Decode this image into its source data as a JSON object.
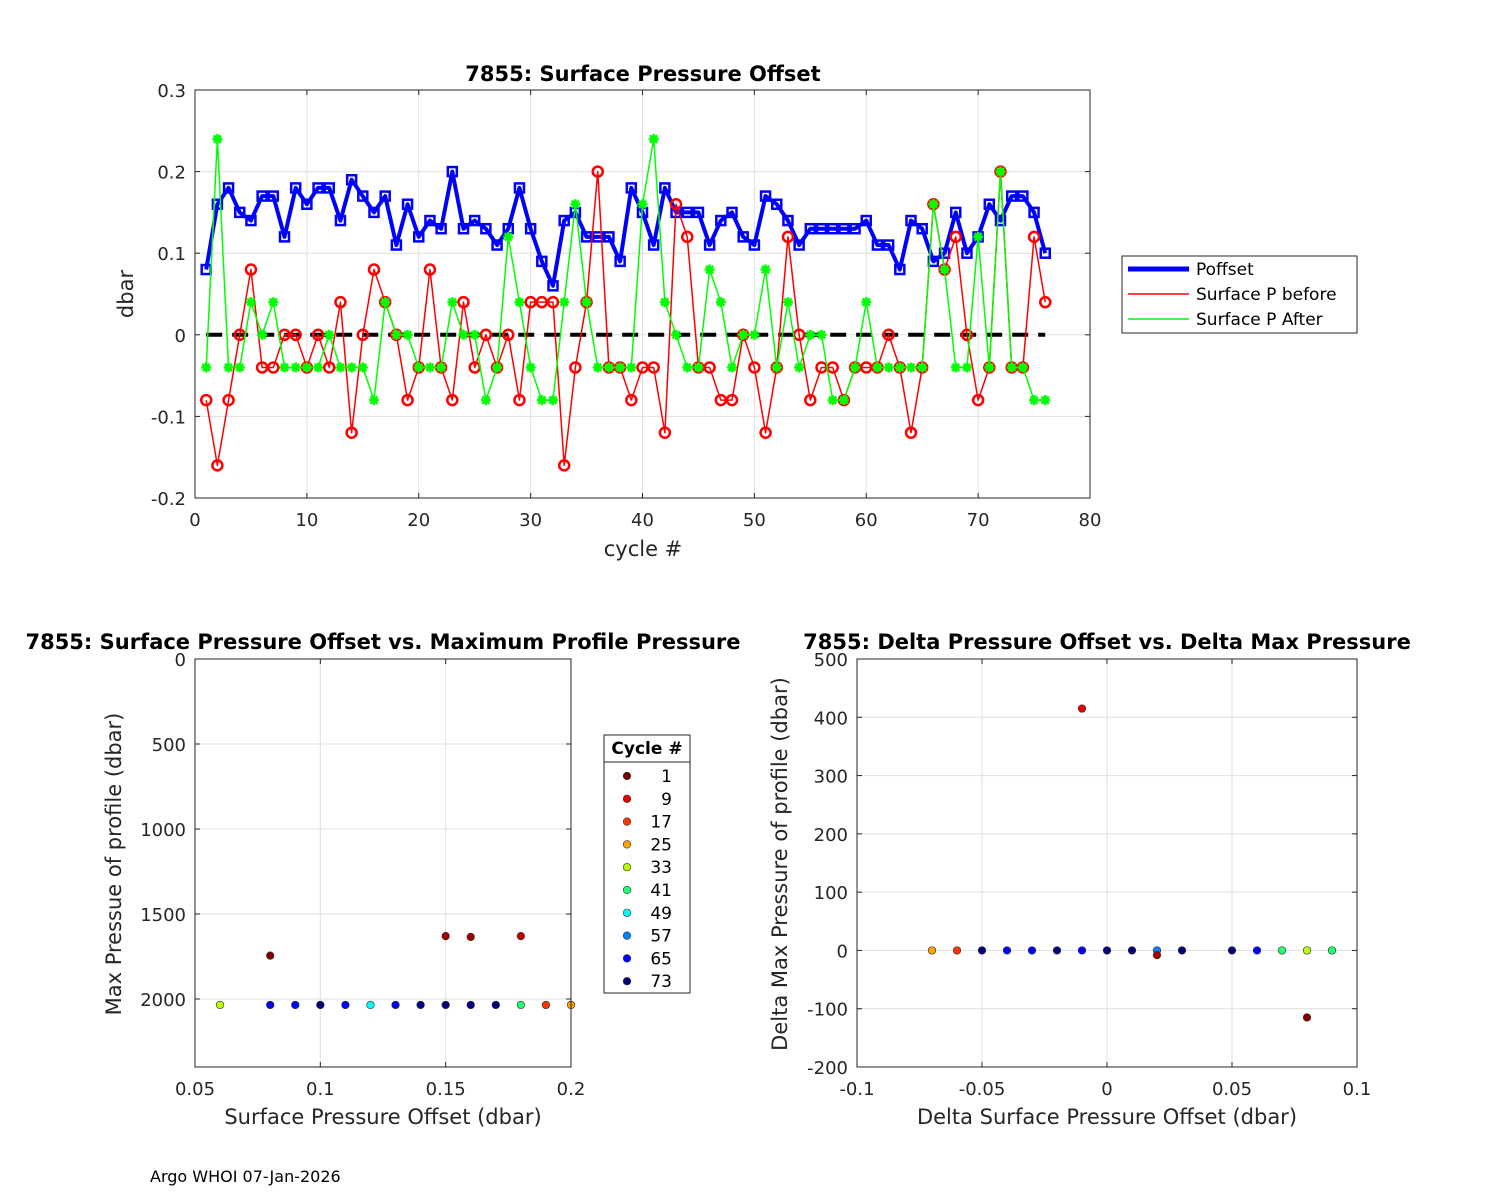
{
  "footer": "Argo WHOI 07-Jan-2026",
  "chart_data": [
    {
      "type": "line",
      "title": "7855: Surface Pressure Offset",
      "xlabel": "cycle #",
      "ylabel": "dbar",
      "xlim": [
        0,
        80
      ],
      "ylim": [
        -0.2,
        0.3
      ],
      "xticks": [
        0,
        10,
        20,
        30,
        40,
        50,
        60,
        70,
        80
      ],
      "yticks": [
        -0.2,
        -0.1,
        0,
        0.1,
        0.2,
        0.3
      ],
      "xtick_labels": [
        "0",
        "10",
        "20",
        "30",
        "40",
        "50",
        "60",
        "70",
        "80"
      ],
      "ytick_labels": [
        "-0.2",
        "-0.1",
        "0",
        "0.1",
        "0.2",
        "0.3"
      ],
      "grid": true,
      "legend_position": "outside-right",
      "zero_line": {
        "y": 0,
        "color": "#000000",
        "style": "dashed"
      },
      "x": [
        1,
        2,
        3,
        4,
        5,
        6,
        7,
        8,
        9,
        10,
        11,
        12,
        13,
        14,
        15,
        16,
        17,
        18,
        19,
        20,
        21,
        22,
        23,
        24,
        25,
        26,
        27,
        28,
        29,
        30,
        31,
        32,
        33,
        34,
        35,
        36,
        37,
        38,
        39,
        40,
        41,
        42,
        43,
        44,
        45,
        46,
        47,
        48,
        49,
        50,
        51,
        52,
        53,
        54,
        55,
        56,
        57,
        58,
        59,
        60,
        61,
        62,
        63,
        64,
        65,
        66,
        67,
        68,
        69,
        70,
        71,
        72,
        73,
        74,
        75,
        76
      ],
      "series": [
        {
          "name": "Poffset",
          "color": "#0000ff",
          "marker": "square",
          "values": [
            0.08,
            0.16,
            0.18,
            0.15,
            0.14,
            0.17,
            0.17,
            0.12,
            0.18,
            0.16,
            0.18,
            0.18,
            0.14,
            0.19,
            0.17,
            0.15,
            0.17,
            0.11,
            0.16,
            0.12,
            0.14,
            0.13,
            0.2,
            0.13,
            0.14,
            0.13,
            0.11,
            0.13,
            0.18,
            0.13,
            0.09,
            0.06,
            0.14,
            0.15,
            0.12,
            0.12,
            0.12,
            0.09,
            0.18,
            0.15,
            0.11,
            0.18,
            0.15,
            0.15,
            0.15,
            0.11,
            0.14,
            0.15,
            0.12,
            0.11,
            0.17,
            0.16,
            0.14,
            0.11,
            0.13,
            0.13,
            0.13,
            0.13,
            0.13,
            0.14,
            0.11,
            0.11,
            0.08,
            0.14,
            0.13,
            0.09,
            0.1,
            0.15,
            0.1,
            0.12,
            0.16,
            0.14,
            0.17,
            0.17,
            0.15,
            0.1
          ]
        },
        {
          "name": "Surface P before",
          "color": "#ff0000",
          "marker": "circle",
          "values": [
            -0.08,
            -0.16,
            -0.08,
            0,
            0.08,
            -0.04,
            -0.04,
            0,
            0,
            -0.04,
            0,
            -0.04,
            0.04,
            -0.12,
            0,
            0.08,
            0.04,
            0,
            -0.08,
            -0.04,
            0.08,
            -0.04,
            -0.08,
            0.04,
            -0.04,
            0,
            -0.04,
            0,
            -0.08,
            0.04,
            0.04,
            0.04,
            -0.16,
            -0.04,
            0.04,
            0.2,
            -0.04,
            -0.04,
            -0.08,
            -0.04,
            -0.04,
            -0.12,
            0.16,
            0.12,
            -0.04,
            -0.04,
            -0.08,
            -0.08,
            0,
            -0.04,
            -0.12,
            -0.04,
            0.12,
            0,
            -0.08,
            -0.04,
            -0.04,
            -0.08,
            -0.04,
            -0.04,
            -0.04,
            0,
            -0.04,
            -0.12,
            -0.04,
            0.16,
            0.08,
            0.12,
            0,
            -0.08,
            -0.04,
            0.2,
            -0.04,
            -0.04,
            0.12,
            0.04
          ]
        },
        {
          "name": "Surface P After",
          "color": "#00ff00",
          "marker": "asterisk",
          "values": [
            -0.04,
            0.24,
            -0.04,
            -0.04,
            0.04,
            0,
            0.04,
            -0.04,
            -0.04,
            -0.04,
            -0.04,
            0,
            -0.04,
            -0.04,
            -0.04,
            -0.08,
            0.04,
            0,
            0,
            -0.04,
            -0.04,
            -0.04,
            0.04,
            0,
            0,
            -0.08,
            -0.04,
            0.12,
            0.04,
            -0.04,
            -0.08,
            -0.08,
            0.04,
            0.16,
            0.04,
            -0.04,
            -0.04,
            -0.04,
            -0.04,
            0.16,
            0.24,
            0.04,
            0,
            -0.04,
            -0.04,
            0.08,
            0.04,
            -0.04,
            0,
            0,
            0.08,
            -0.04,
            0.04,
            -0.04,
            0,
            0,
            -0.08,
            -0.08,
            -0.04,
            0.04,
            -0.04,
            -0.04,
            -0.04,
            -0.04,
            -0.04,
            0.16,
            0.08,
            -0.04,
            -0.04,
            0.12,
            -0.04,
            0.2,
            -0.04,
            -0.04,
            -0.08,
            -0.08
          ]
        }
      ]
    },
    {
      "type": "scatter",
      "title": "7855: Surface Pressure Offset vs. Maximum Profile Pressure",
      "xlabel": "Surface Pressure Offset (dbar)",
      "ylabel": "Max Pressue of profile (dbar)",
      "xlim": [
        0.05,
        0.2
      ],
      "ylim": [
        0,
        2400
      ],
      "y_reversed": true,
      "xticks": [
        0.05,
        0.1,
        0.15,
        0.2
      ],
      "yticks": [
        0,
        500,
        1000,
        1500,
        2000
      ],
      "xtick_labels": [
        "0.05",
        "0.1",
        "0.15",
        "0.2"
      ],
      "ytick_labels": [
        "0",
        "500",
        "1000",
        "1500",
        "2000"
      ],
      "grid": true,
      "legend_title": "Cycle #",
      "legend_position": "outside-right",
      "legend": [
        {
          "label": "1",
          "color": "#800000"
        },
        {
          "label": "9",
          "color": "#e60000"
        },
        {
          "label": "17",
          "color": "#ff3300"
        },
        {
          "label": "25",
          "color": "#ffa000"
        },
        {
          "label": "33",
          "color": "#b8ff00"
        },
        {
          "label": "41",
          "color": "#20ff70"
        },
        {
          "label": "49",
          "color": "#00ffff"
        },
        {
          "label": "57",
          "color": "#0080ff"
        },
        {
          "label": "65",
          "color": "#0000ff"
        },
        {
          "label": "73",
          "color": "#000080"
        }
      ],
      "points": [
        {
          "x": 0.08,
          "y": 1745,
          "color": "#800000"
        },
        {
          "x": 0.15,
          "y": 1630,
          "color": "#a00000"
        },
        {
          "x": 0.16,
          "y": 1635,
          "color": "#a00000"
        },
        {
          "x": 0.18,
          "y": 1630,
          "color": "#c00000"
        },
        {
          "x": 0.06,
          "y": 2035,
          "color": "#b8ff00"
        },
        {
          "x": 0.08,
          "y": 2035,
          "color": "#0000ff"
        },
        {
          "x": 0.09,
          "y": 2035,
          "color": "#0000ff"
        },
        {
          "x": 0.1,
          "y": 2035,
          "color": "#000080"
        },
        {
          "x": 0.11,
          "y": 2035,
          "color": "#0000ff"
        },
        {
          "x": 0.12,
          "y": 2035,
          "color": "#00ffff"
        },
        {
          "x": 0.13,
          "y": 2035,
          "color": "#0000ff"
        },
        {
          "x": 0.14,
          "y": 2035,
          "color": "#000080"
        },
        {
          "x": 0.15,
          "y": 2035,
          "color": "#000080"
        },
        {
          "x": 0.16,
          "y": 2035,
          "color": "#000080"
        },
        {
          "x": 0.17,
          "y": 2035,
          "color": "#000080"
        },
        {
          "x": 0.18,
          "y": 2035,
          "color": "#20ff70"
        },
        {
          "x": 0.19,
          "y": 2035,
          "color": "#ff3300"
        },
        {
          "x": 0.2,
          "y": 2035,
          "color": "#ffa000"
        }
      ]
    },
    {
      "type": "scatter",
      "title": "7855: Delta Pressure Offset vs. Delta Max Pressure",
      "xlabel": "Delta Surface Pressure Offset (dbar)",
      "ylabel": "Delta Max Pressure of profile (dbar)",
      "xlim": [
        -0.1,
        0.1
      ],
      "ylim": [
        -200,
        500
      ],
      "xticks": [
        -0.1,
        -0.05,
        0,
        0.05,
        0.1
      ],
      "yticks": [
        -200,
        -100,
        0,
        100,
        200,
        300,
        400,
        500
      ],
      "xtick_labels": [
        "-0.1",
        "-0.05",
        "0",
        "0.05",
        "0.1"
      ],
      "ytick_labels": [
        "-200",
        "-100",
        "0",
        "100",
        "200",
        "300",
        "400",
        "500"
      ],
      "grid": true,
      "points": [
        {
          "x": -0.07,
          "y": 0,
          "color": "#ffa000"
        },
        {
          "x": -0.06,
          "y": 0,
          "color": "#ff3300"
        },
        {
          "x": -0.05,
          "y": 0,
          "color": "#000080"
        },
        {
          "x": -0.04,
          "y": 0,
          "color": "#0000ff"
        },
        {
          "x": -0.03,
          "y": 0,
          "color": "#0000ff"
        },
        {
          "x": -0.02,
          "y": 0,
          "color": "#000080"
        },
        {
          "x": -0.01,
          "y": 0,
          "color": "#0000ff"
        },
        {
          "x": -0.01,
          "y": 415,
          "color": "#e60000"
        },
        {
          "x": 0,
          "y": 0,
          "color": "#000080"
        },
        {
          "x": 0.01,
          "y": 0,
          "color": "#000080"
        },
        {
          "x": 0.02,
          "y": 0,
          "color": "#0080ff"
        },
        {
          "x": 0.02,
          "y": -8,
          "color": "#a00000"
        },
        {
          "x": 0.03,
          "y": 0,
          "color": "#000080"
        },
        {
          "x": 0.05,
          "y": 0,
          "color": "#000080"
        },
        {
          "x": 0.06,
          "y": 0,
          "color": "#0000ff"
        },
        {
          "x": 0.07,
          "y": 0,
          "color": "#20ff70"
        },
        {
          "x": 0.08,
          "y": 0,
          "color": "#b8ff00"
        },
        {
          "x": 0.09,
          "y": 0,
          "color": "#20ff70"
        },
        {
          "x": 0.08,
          "y": -115,
          "color": "#800000"
        }
      ]
    }
  ]
}
